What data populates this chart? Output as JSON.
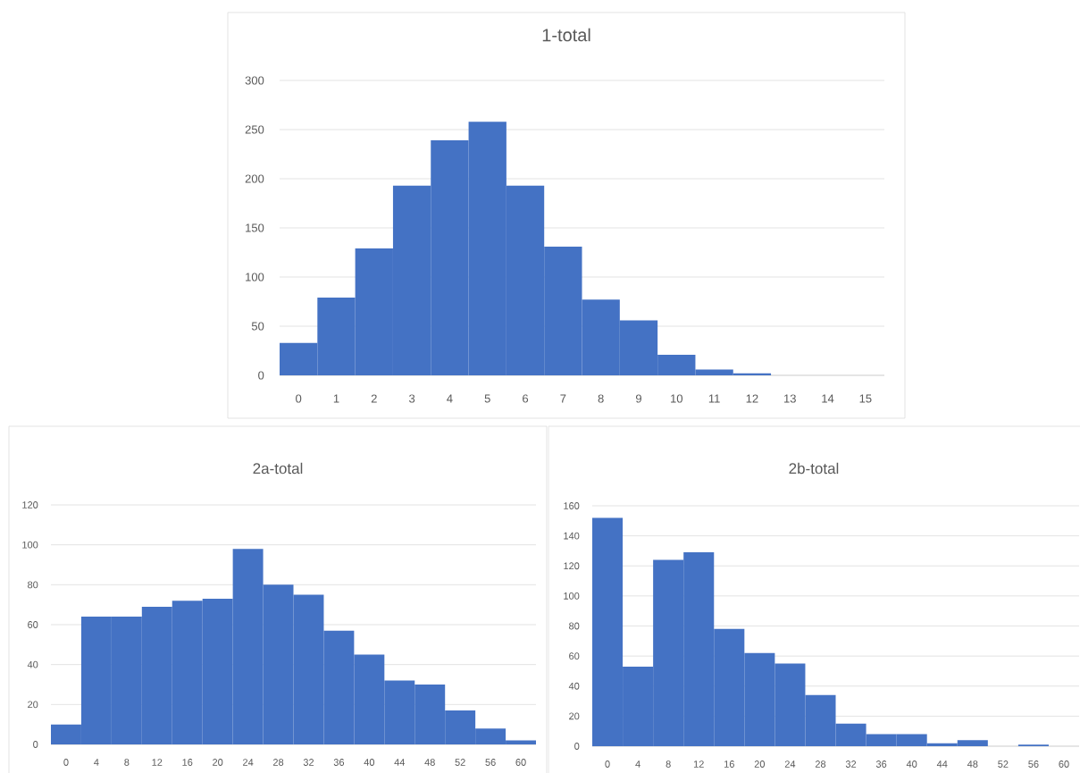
{
  "chart_data": [
    {
      "type": "bar",
      "title": "1-total",
      "categories": [
        "0",
        "1",
        "2",
        "3",
        "4",
        "5",
        "6",
        "7",
        "8",
        "9",
        "10",
        "11",
        "12",
        "13",
        "14",
        "15"
      ],
      "values": [
        33,
        79,
        129,
        193,
        239,
        258,
        193,
        131,
        77,
        56,
        21,
        6,
        2,
        0,
        0,
        0
      ],
      "color": "#4472c4",
      "ylim": [
        0,
        300
      ],
      "yticks": [
        0,
        50,
        100,
        150,
        200,
        250,
        300
      ],
      "grid": "y"
    },
    {
      "type": "bar",
      "title": "2a-total",
      "categories": [
        "0",
        "4",
        "8",
        "12",
        "16",
        "20",
        "24",
        "28",
        "32",
        "36",
        "40",
        "44",
        "48",
        "52",
        "56",
        "60"
      ],
      "values": [
        10,
        64,
        64,
        69,
        72,
        73,
        98,
        80,
        75,
        57,
        45,
        32,
        30,
        17,
        8,
        2
      ],
      "color": "#4472c4",
      "ylim": [
        0,
        120
      ],
      "yticks": [
        0,
        20,
        40,
        60,
        80,
        100,
        120
      ],
      "grid": "y"
    },
    {
      "type": "bar",
      "title": "2b-total",
      "categories": [
        "0",
        "4",
        "8",
        "12",
        "16",
        "20",
        "24",
        "28",
        "32",
        "36",
        "40",
        "44",
        "48",
        "52",
        "56",
        "60"
      ],
      "values": [
        152,
        53,
        124,
        129,
        78,
        62,
        55,
        34,
        15,
        8,
        8,
        2,
        4,
        0,
        1,
        0
      ],
      "color": "#4472c4",
      "ylim": [
        0,
        160
      ],
      "yticks": [
        0,
        20,
        40,
        60,
        80,
        100,
        120,
        140,
        160
      ],
      "grid": "y"
    }
  ]
}
